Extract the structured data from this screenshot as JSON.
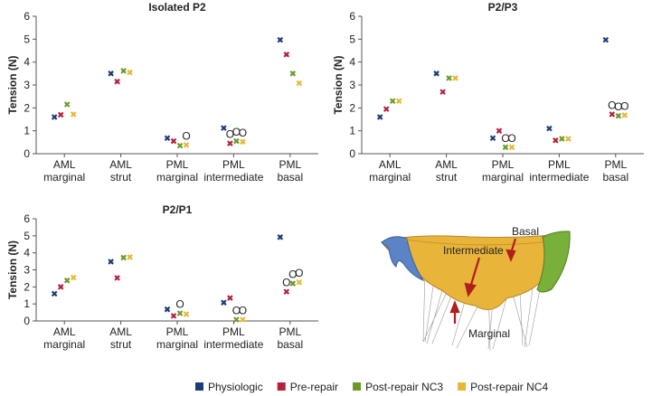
{
  "chart_data": [
    {
      "type": "scatter",
      "title": "Isolated P2",
      "y_label": "Tension (N)",
      "categories": [
        [
          "AML",
          "marginal"
        ],
        [
          "AML",
          "strut"
        ],
        [
          "PML",
          "marginal"
        ],
        [
          "PML",
          "intermediate"
        ],
        [
          "PML",
          "basal"
        ]
      ],
      "ylim": [
        0,
        6
      ],
      "yticks": [
        0,
        1,
        2,
        3,
        4,
        5,
        6
      ],
      "series": [
        {
          "values": [
            1.6,
            3.5,
            0.68,
            1.12,
            4.97
          ],
          "annotations": [
            null,
            null,
            null,
            null,
            null
          ]
        },
        {
          "values": [
            1.7,
            3.15,
            0.55,
            0.45,
            4.33
          ],
          "annotations": [
            null,
            null,
            null,
            "O",
            null
          ]
        },
        {
          "values": [
            2.15,
            3.62,
            0.35,
            0.55,
            3.5
          ],
          "annotations": [
            null,
            null,
            null,
            "O",
            null
          ]
        },
        {
          "values": [
            1.72,
            3.55,
            0.38,
            0.52,
            3.08
          ],
          "annotations": [
            null,
            null,
            "O",
            "O",
            null
          ]
        }
      ]
    },
    {
      "type": "scatter",
      "title": "P2/P3",
      "y_label": "Tension (N)",
      "categories": [
        [
          "AML",
          "marginal"
        ],
        [
          "AML",
          "strut"
        ],
        [
          "PML",
          "marginal"
        ],
        [
          "PML",
          "intermediate"
        ],
        [
          "PML",
          "basal"
        ]
      ],
      "ylim": [
        0,
        6
      ],
      "yticks": [
        0,
        1,
        2,
        3,
        4,
        5,
        6
      ],
      "series": [
        {
          "values": [
            1.6,
            3.5,
            0.68,
            1.1,
            4.97
          ],
          "annotations": [
            null,
            null,
            null,
            null,
            null
          ]
        },
        {
          "values": [
            1.95,
            2.7,
            1.0,
            0.58,
            1.72
          ],
          "annotations": [
            null,
            null,
            null,
            null,
            "O"
          ]
        },
        {
          "values": [
            2.3,
            3.3,
            0.28,
            0.65,
            1.65
          ],
          "annotations": [
            null,
            null,
            "O",
            null,
            "O"
          ]
        },
        {
          "values": [
            2.3,
            3.3,
            0.28,
            0.65,
            1.68
          ],
          "annotations": [
            null,
            null,
            "O",
            null,
            "O"
          ]
        }
      ]
    },
    {
      "type": "scatter",
      "title": "P2/P1",
      "y_label": "Tension (N)",
      "categories": [
        [
          "AML",
          "marginal"
        ],
        [
          "AML",
          "strut"
        ],
        [
          "PML",
          "marginal"
        ],
        [
          "PML",
          "intermediate"
        ],
        [
          "PML",
          "basal"
        ]
      ],
      "ylim": [
        0,
        6
      ],
      "yticks": [
        0,
        1,
        2,
        3,
        4,
        5,
        6
      ],
      "series": [
        {
          "values": [
            1.6,
            3.48,
            0.68,
            1.08,
            4.92
          ],
          "annotations": [
            null,
            null,
            null,
            null,
            null
          ]
        },
        {
          "values": [
            2.0,
            2.53,
            0.3,
            1.35,
            1.72
          ],
          "annotations": [
            null,
            null,
            null,
            null,
            "O"
          ]
        },
        {
          "values": [
            2.38,
            3.72,
            0.45,
            0.08,
            2.2
          ],
          "annotations": [
            null,
            null,
            "O",
            "O",
            "O"
          ]
        },
        {
          "values": [
            2.55,
            3.75,
            0.4,
            0.08,
            2.27
          ],
          "annotations": [
            null,
            null,
            null,
            "O",
            "O"
          ]
        }
      ]
    }
  ],
  "legend": [
    {
      "name": "Physiologic",
      "color": "#1c3c78"
    },
    {
      "name": "Pre-repair",
      "color": "#b4213f"
    },
    {
      "name": "Post-repair NC3",
      "color": "#6b9a2b"
    },
    {
      "name": "Post-repair NC4",
      "color": "#e7b737"
    }
  ],
  "illustration": {
    "labels": [
      "Basal",
      "Intermediate",
      "Marginal"
    ]
  }
}
